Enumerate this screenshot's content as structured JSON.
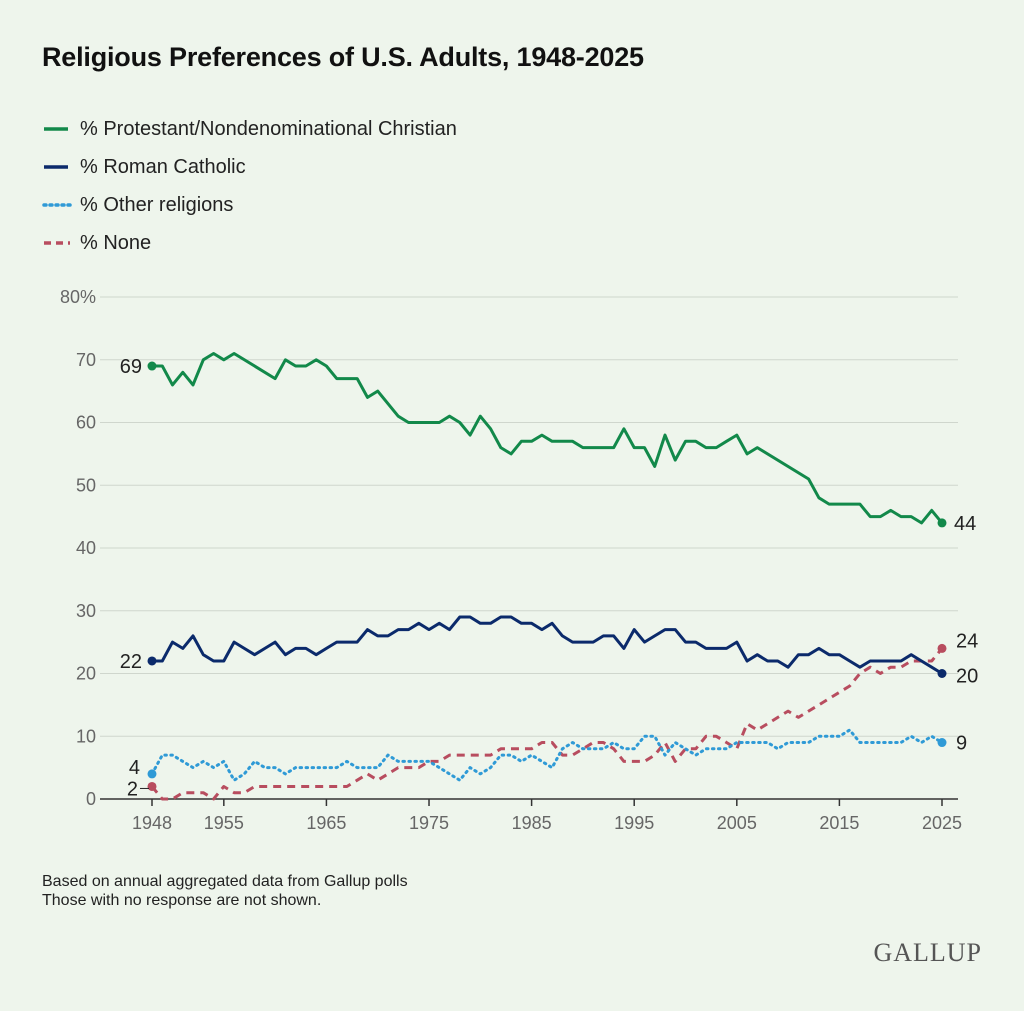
{
  "title": "Religious Preferences of U.S. Adults, 1948-2025",
  "footnotes": [
    "Based on annual aggregated data from Gallup polls",
    "Those with no response are not shown."
  ],
  "brand": "GALLUP",
  "colors": {
    "protestant": "#12894a",
    "catholic": "#0b2a6b",
    "other": "#2f9ad6",
    "none": "#b84d5f",
    "grid": "#cfd6cd",
    "axis": "#333333"
  },
  "chart_data": {
    "type": "line",
    "title": "Religious Preferences of U.S. Adults, 1948-2025",
    "xlabel": "",
    "ylabel": "",
    "xlim": [
      1948,
      2025
    ],
    "ylim": [
      0,
      80
    ],
    "grid": true,
    "legend_position": "top-left",
    "x_ticks": [
      1948,
      1955,
      1965,
      1975,
      1985,
      1995,
      2005,
      2015,
      2025
    ],
    "y_ticks": [
      0,
      10,
      20,
      30,
      40,
      50,
      60,
      70,
      80
    ],
    "y_tick_labels": [
      "0",
      "10",
      "20",
      "30",
      "40",
      "50",
      "60",
      "70",
      "80%"
    ],
    "series": [
      {
        "name": "% Protestant/Nondenominational Christian",
        "key": "protestant",
        "style": "solid",
        "start_label": "69",
        "end_label": "44",
        "points": [
          [
            1948,
            69
          ],
          [
            1949,
            69
          ],
          [
            1950,
            66
          ],
          [
            1951,
            68
          ],
          [
            1952,
            66
          ],
          [
            1953,
            70
          ],
          [
            1954,
            71
          ],
          [
            1955,
            70
          ],
          [
            1956,
            71
          ],
          [
            1960,
            67
          ],
          [
            1961,
            70
          ],
          [
            1962,
            69
          ],
          [
            1963,
            69
          ],
          [
            1964,
            70
          ],
          [
            1965,
            69
          ],
          [
            1966,
            67
          ],
          [
            1967,
            67
          ],
          [
            1968,
            67
          ],
          [
            1969,
            64
          ],
          [
            1970,
            65
          ],
          [
            1971,
            63
          ],
          [
            1972,
            61
          ],
          [
            1973,
            60
          ],
          [
            1974,
            60
          ],
          [
            1975,
            60
          ],
          [
            1976,
            60
          ],
          [
            1977,
            61
          ],
          [
            1978,
            60
          ],
          [
            1979,
            58
          ],
          [
            1980,
            61
          ],
          [
            1981,
            59
          ],
          [
            1982,
            56
          ],
          [
            1983,
            55
          ],
          [
            1984,
            57
          ],
          [
            1985,
            57
          ],
          [
            1986,
            58
          ],
          [
            1987,
            57
          ],
          [
            1988,
            57
          ],
          [
            1989,
            57
          ],
          [
            1990,
            56
          ],
          [
            1991,
            56
          ],
          [
            1992,
            56
          ],
          [
            1993,
            56
          ],
          [
            1994,
            59
          ],
          [
            1995,
            56
          ],
          [
            1996,
            56
          ],
          [
            1997,
            53
          ],
          [
            1998,
            58
          ],
          [
            1999,
            54
          ],
          [
            2000,
            57
          ],
          [
            2001,
            57
          ],
          [
            2002,
            56
          ],
          [
            2003,
            56
          ],
          [
            2004,
            57
          ],
          [
            2005,
            58
          ],
          [
            2006,
            55
          ],
          [
            2007,
            56
          ],
          [
            2012,
            51
          ],
          [
            2013,
            48
          ],
          [
            2014,
            47
          ],
          [
            2015,
            47
          ],
          [
            2016,
            47
          ],
          [
            2017,
            47
          ],
          [
            2018,
            45
          ],
          [
            2019,
            45
          ],
          [
            2020,
            46
          ],
          [
            2021,
            45
          ],
          [
            2022,
            45
          ],
          [
            2023,
            44
          ],
          [
            2024,
            46
          ],
          [
            2025,
            44
          ]
        ]
      },
      {
        "name": "% Roman Catholic",
        "key": "catholic",
        "style": "solid",
        "start_label": "22",
        "end_label": "20",
        "points": [
          [
            1948,
            22
          ],
          [
            1949,
            22
          ],
          [
            1950,
            25
          ],
          [
            1951,
            24
          ],
          [
            1952,
            26
          ],
          [
            1953,
            23
          ],
          [
            1954,
            22
          ],
          [
            1955,
            22
          ],
          [
            1956,
            25
          ],
          [
            1957,
            24
          ],
          [
            1958,
            23
          ],
          [
            1959,
            24
          ],
          [
            1960,
            25
          ],
          [
            1961,
            23
          ],
          [
            1962,
            24
          ],
          [
            1963,
            24
          ],
          [
            1964,
            23
          ],
          [
            1965,
            24
          ],
          [
            1966,
            25
          ],
          [
            1967,
            25
          ],
          [
            1968,
            25
          ],
          [
            1969,
            27
          ],
          [
            1970,
            26
          ],
          [
            1971,
            26
          ],
          [
            1972,
            27
          ],
          [
            1973,
            27
          ],
          [
            1974,
            28
          ],
          [
            1975,
            27
          ],
          [
            1976,
            28
          ],
          [
            1977,
            27
          ],
          [
            1978,
            29
          ],
          [
            1979,
            29
          ],
          [
            1980,
            28
          ],
          [
            1981,
            28
          ],
          [
            1982,
            29
          ],
          [
            1983,
            29
          ],
          [
            1984,
            28
          ],
          [
            1985,
            28
          ],
          [
            1986,
            27
          ],
          [
            1987,
            28
          ],
          [
            1988,
            26
          ],
          [
            1989,
            25
          ],
          [
            1990,
            25
          ],
          [
            1991,
            25
          ],
          [
            1992,
            26
          ],
          [
            1993,
            26
          ],
          [
            1994,
            24
          ],
          [
            1995,
            27
          ],
          [
            1996,
            25
          ],
          [
            1997,
            26
          ],
          [
            1998,
            27
          ],
          [
            1999,
            27
          ],
          [
            2000,
            25
          ],
          [
            2001,
            25
          ],
          [
            2002,
            24
          ],
          [
            2003,
            24
          ],
          [
            2004,
            24
          ],
          [
            2005,
            25
          ],
          [
            2006,
            22
          ],
          [
            2007,
            23
          ],
          [
            2008,
            22
          ],
          [
            2009,
            22
          ],
          [
            2010,
            21
          ],
          [
            2011,
            23
          ],
          [
            2012,
            23
          ],
          [
            2013,
            24
          ],
          [
            2014,
            23
          ],
          [
            2015,
            23
          ],
          [
            2016,
            22
          ],
          [
            2017,
            21
          ],
          [
            2018,
            22
          ],
          [
            2019,
            22
          ],
          [
            2020,
            22
          ],
          [
            2021,
            22
          ],
          [
            2022,
            23
          ],
          [
            2023,
            22
          ],
          [
            2024,
            21
          ],
          [
            2025,
            20
          ]
        ]
      },
      {
        "name": "% Other religions",
        "key": "other",
        "style": "dotted",
        "start_label": "4",
        "end_label": "9",
        "points": [
          [
            1948,
            4
          ],
          [
            1949,
            7
          ],
          [
            1950,
            7
          ],
          [
            1951,
            6
          ],
          [
            1952,
            5
          ],
          [
            1953,
            6
          ],
          [
            1954,
            5
          ],
          [
            1955,
            6
          ],
          [
            1956,
            3
          ],
          [
            1957,
            4
          ],
          [
            1958,
            6
          ],
          [
            1959,
            5
          ],
          [
            1960,
            5
          ],
          [
            1961,
            4
          ],
          [
            1962,
            5
          ],
          [
            1963,
            5
          ],
          [
            1964,
            5
          ],
          [
            1965,
            5
          ],
          [
            1966,
            5
          ],
          [
            1967,
            6
          ],
          [
            1968,
            5
          ],
          [
            1969,
            5
          ],
          [
            1970,
            5
          ],
          [
            1971,
            7
          ],
          [
            1972,
            6
          ],
          [
            1973,
            6
          ],
          [
            1974,
            6
          ],
          [
            1975,
            6
          ],
          [
            1976,
            5
          ],
          [
            1977,
            4
          ],
          [
            1978,
            3
          ],
          [
            1979,
            5
          ],
          [
            1980,
            4
          ],
          [
            1981,
            5
          ],
          [
            1982,
            7
          ],
          [
            1983,
            7
          ],
          [
            1984,
            6
          ],
          [
            1985,
            7
          ],
          [
            1986,
            6
          ],
          [
            1987,
            5
          ],
          [
            1988,
            8
          ],
          [
            1989,
            9
          ],
          [
            1990,
            8
          ],
          [
            1991,
            8
          ],
          [
            1992,
            8
          ],
          [
            1993,
            9
          ],
          [
            1994,
            8
          ],
          [
            1995,
            8
          ],
          [
            1996,
            10
          ],
          [
            1997,
            10
          ],
          [
            1998,
            7
          ],
          [
            1999,
            9
          ],
          [
            2000,
            8
          ],
          [
            2001,
            7
          ],
          [
            2002,
            8
          ],
          [
            2003,
            8
          ],
          [
            2004,
            8
          ],
          [
            2005,
            9
          ],
          [
            2006,
            9
          ],
          [
            2007,
            9
          ],
          [
            2008,
            9
          ],
          [
            2009,
            8
          ],
          [
            2010,
            9
          ],
          [
            2011,
            9
          ],
          [
            2012,
            9
          ],
          [
            2013,
            10
          ],
          [
            2014,
            10
          ],
          [
            2015,
            10
          ],
          [
            2016,
            11
          ],
          [
            2017,
            9
          ],
          [
            2018,
            9
          ],
          [
            2019,
            9
          ],
          [
            2020,
            9
          ],
          [
            2021,
            9
          ],
          [
            2022,
            10
          ],
          [
            2023,
            9
          ],
          [
            2024,
            10
          ],
          [
            2025,
            9
          ]
        ]
      },
      {
        "name": "% None",
        "key": "none",
        "style": "dashed",
        "start_label": "2",
        "end_label": "24",
        "points": [
          [
            1948,
            2
          ],
          [
            1949,
            0
          ],
          [
            1950,
            0
          ],
          [
            1951,
            1
          ],
          [
            1952,
            1
          ],
          [
            1953,
            1
          ],
          [
            1954,
            0
          ],
          [
            1955,
            2
          ],
          [
            1956,
            1
          ],
          [
            1957,
            1
          ],
          [
            1958,
            2
          ],
          [
            1959,
            2
          ],
          [
            1960,
            2
          ],
          [
            1961,
            2
          ],
          [
            1962,
            2
          ],
          [
            1963,
            2
          ],
          [
            1964,
            2
          ],
          [
            1965,
            2
          ],
          [
            1966,
            2
          ],
          [
            1967,
            2
          ],
          [
            1968,
            3
          ],
          [
            1969,
            4
          ],
          [
            1970,
            3
          ],
          [
            1971,
            4
          ],
          [
            1972,
            5
          ],
          [
            1973,
            5
          ],
          [
            1974,
            5
          ],
          [
            1975,
            6
          ],
          [
            1976,
            6
          ],
          [
            1977,
            7
          ],
          [
            1978,
            7
          ],
          [
            1979,
            7
          ],
          [
            1980,
            7
          ],
          [
            1981,
            7
          ],
          [
            1982,
            8
          ],
          [
            1983,
            8
          ],
          [
            1984,
            8
          ],
          [
            1985,
            8
          ],
          [
            1986,
            9
          ],
          [
            1987,
            9
          ],
          [
            1988,
            7
          ],
          [
            1989,
            7
          ],
          [
            1990,
            8
          ],
          [
            1991,
            9
          ],
          [
            1992,
            9
          ],
          [
            1993,
            8
          ],
          [
            1994,
            6
          ],
          [
            1995,
            6
          ],
          [
            1996,
            6
          ],
          [
            1997,
            7
          ],
          [
            1998,
            9
          ],
          [
            1999,
            6
          ],
          [
            2000,
            8
          ],
          [
            2001,
            8
          ],
          [
            2002,
            10
          ],
          [
            2003,
            10
          ],
          [
            2004,
            9
          ],
          [
            2005,
            8
          ],
          [
            2006,
            12
          ],
          [
            2007,
            11
          ],
          [
            2008,
            12
          ],
          [
            2009,
            13
          ],
          [
            2010,
            14
          ],
          [
            2011,
            13
          ],
          [
            2012,
            14
          ],
          [
            2013,
            15
          ],
          [
            2014,
            16
          ],
          [
            2015,
            17
          ],
          [
            2016,
            18
          ],
          [
            2017,
            20
          ],
          [
            2018,
            21
          ],
          [
            2019,
            20
          ],
          [
            2020,
            21
          ],
          [
            2021,
            21
          ],
          [
            2022,
            22
          ],
          [
            2023,
            22
          ],
          [
            2024,
            22
          ],
          [
            2025,
            24
          ]
        ]
      }
    ]
  }
}
